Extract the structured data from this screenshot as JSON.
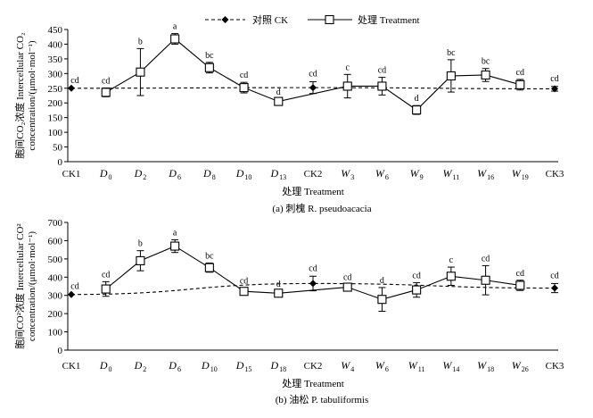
{
  "legend": {
    "control_label": "对照 CK",
    "treatment_label": "处理 Treatment"
  },
  "chart_data": [
    {
      "type": "line",
      "caption": "(a) 刺槐 R. pseudoacacia",
      "ylabel_line1": "胞间CO₂浓度 Intercellular CO₂",
      "ylabel_line2": "concentration/(μmol·mol⁻¹)",
      "xlabel": "处理 Treatment",
      "ylim": [
        0,
        450
      ],
      "yticks": [
        0,
        50,
        100,
        150,
        200,
        250,
        300,
        350,
        400,
        450
      ],
      "categories": [
        {
          "main": "CK1",
          "sub": ""
        },
        {
          "main": "D",
          "sub": "0"
        },
        {
          "main": "D",
          "sub": "2"
        },
        {
          "main": "D",
          "sub": "6"
        },
        {
          "main": "D",
          "sub": "8"
        },
        {
          "main": "D",
          "sub": "10"
        },
        {
          "main": "D",
          "sub": "13"
        },
        {
          "main": "CK2",
          "sub": ""
        },
        {
          "main": "W",
          "sub": "3"
        },
        {
          "main": "W",
          "sub": "6"
        },
        {
          "main": "W",
          "sub": "9"
        },
        {
          "main": "W",
          "sub": "11"
        },
        {
          "main": "W",
          "sub": "16"
        },
        {
          "main": "W",
          "sub": "19"
        },
        {
          "main": "CK3",
          "sub": ""
        }
      ],
      "control": {
        "name": "对照 CK",
        "points": [
          {
            "idx": 0,
            "value": 250,
            "err": 0,
            "sig": "cd"
          },
          {
            "idx": 7,
            "value": 252,
            "err": 20,
            "sig": "cd"
          },
          {
            "idx": 14,
            "value": 248,
            "err": 8,
            "sig": "cd"
          }
        ]
      },
      "treatment": {
        "name": "处理 Treatment",
        "points": [
          {
            "idx": 1,
            "value": 236,
            "err": 15,
            "sig": "cd"
          },
          {
            "idx": 2,
            "value": 305,
            "err": 80,
            "sig": "b"
          },
          {
            "idx": 3,
            "value": 418,
            "err": 18,
            "sig": "a"
          },
          {
            "idx": 4,
            "value": 320,
            "err": 18,
            "sig": "bc"
          },
          {
            "idx": 5,
            "value": 252,
            "err": 18,
            "sig": "cd"
          },
          {
            "idx": 6,
            "value": 205,
            "err": 8,
            "sig": "d"
          },
          {
            "idx": 8,
            "value": 257,
            "err": 40,
            "sig": "c"
          },
          {
            "idx": 9,
            "value": 257,
            "err": 30,
            "sig": "cd"
          },
          {
            "idx": 10,
            "value": 176,
            "err": 15,
            "sig": "d"
          },
          {
            "idx": 11,
            "value": 292,
            "err": 55,
            "sig": "bc"
          },
          {
            "idx": 12,
            "value": 295,
            "err": 22,
            "sig": "bc"
          },
          {
            "idx": 13,
            "value": 262,
            "err": 18,
            "sig": "cd"
          }
        ]
      }
    },
    {
      "type": "line",
      "caption": "(b) 油松 P. tabuliformis",
      "ylabel_line1": "胞间CO²浓度 Intercellular CO²",
      "ylabel_line2": "concentration/(μmol·mol⁻¹)",
      "xlabel": "处理 Treatment",
      "ylim": [
        0,
        700
      ],
      "yticks": [
        0,
        100,
        200,
        300,
        400,
        500,
        600,
        700
      ],
      "categories": [
        {
          "main": "CK1",
          "sub": ""
        },
        {
          "main": "D",
          "sub": "0"
        },
        {
          "main": "D",
          "sub": "2"
        },
        {
          "main": "D",
          "sub": "6"
        },
        {
          "main": "D",
          "sub": "10"
        },
        {
          "main": "D",
          "sub": "15"
        },
        {
          "main": "D",
          "sub": "18"
        },
        {
          "main": "CK2",
          "sub": ""
        },
        {
          "main": "W",
          "sub": "4"
        },
        {
          "main": "W",
          "sub": "6"
        },
        {
          "main": "W",
          "sub": "11"
        },
        {
          "main": "W",
          "sub": "14"
        },
        {
          "main": "W",
          "sub": "18"
        },
        {
          "main": "W",
          "sub": "26"
        },
        {
          "main": "CK3",
          "sub": ""
        }
      ],
      "control": {
        "name": "对照 CK",
        "points": [
          {
            "idx": 0,
            "value": 305,
            "err": 0,
            "sig": "cd"
          },
          {
            "idx": 7,
            "value": 365,
            "err": 40,
            "sig": "cd"
          },
          {
            "idx": 14,
            "value": 340,
            "err": 25,
            "sig": "cd"
          }
        ]
      },
      "treatment": {
        "name": "处理 Treatment",
        "points": [
          {
            "idx": 1,
            "value": 335,
            "err": 40,
            "sig": "cd"
          },
          {
            "idx": 2,
            "value": 490,
            "err": 55,
            "sig": "b"
          },
          {
            "idx": 3,
            "value": 570,
            "err": 35,
            "sig": "a"
          },
          {
            "idx": 4,
            "value": 452,
            "err": 25,
            "sig": "bc"
          },
          {
            "idx": 5,
            "value": 322,
            "err": 18,
            "sig": "cd"
          },
          {
            "idx": 6,
            "value": 312,
            "err": 12,
            "sig": "d"
          },
          {
            "idx": 8,
            "value": 345,
            "err": 15,
            "sig": "cd"
          },
          {
            "idx": 9,
            "value": 278,
            "err": 65,
            "sig": "d"
          },
          {
            "idx": 10,
            "value": 330,
            "err": 40,
            "sig": "cd"
          },
          {
            "idx": 11,
            "value": 405,
            "err": 50,
            "sig": "c"
          },
          {
            "idx": 12,
            "value": 383,
            "err": 80,
            "sig": "cd"
          },
          {
            "idx": 13,
            "value": 355,
            "err": 28,
            "sig": "cd"
          }
        ]
      }
    }
  ]
}
